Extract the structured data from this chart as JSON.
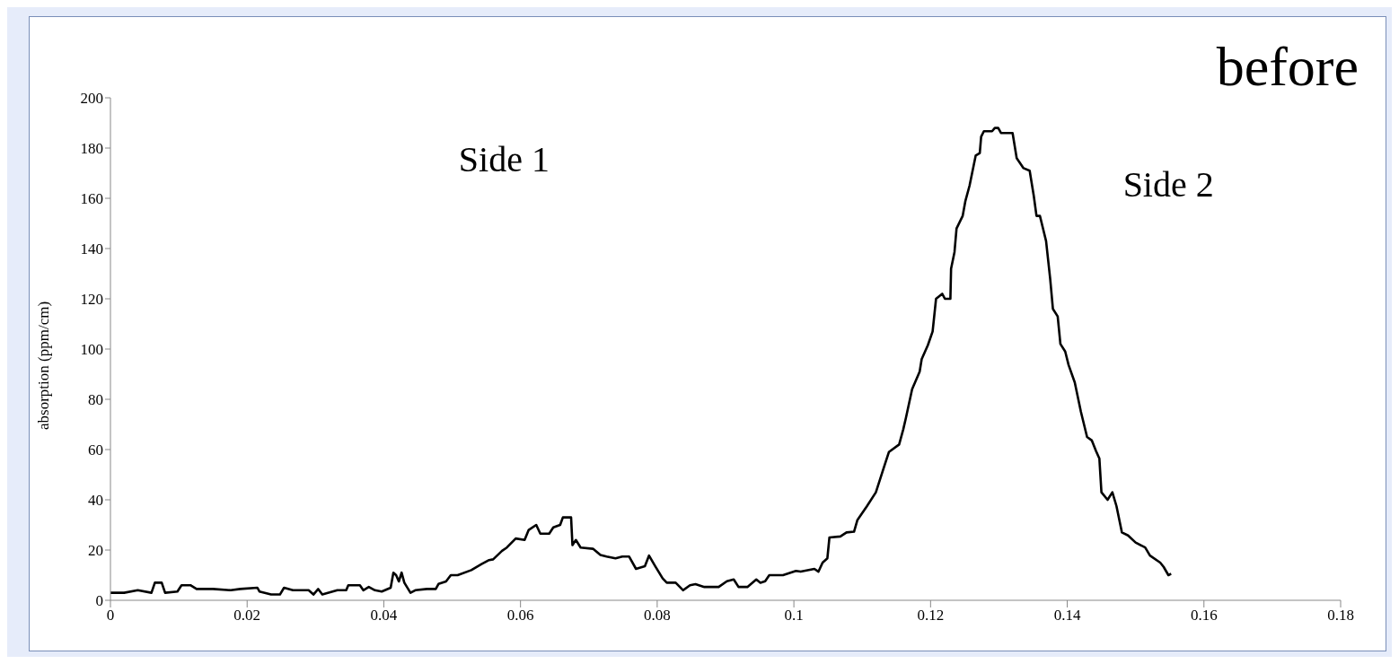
{
  "chart_data": {
    "type": "line",
    "title": "before",
    "ylabel": "absorption (ppm/cm)",
    "annotations": [
      "Side 1",
      "Side 2"
    ],
    "x": [
      0,
      0.002,
      0.004,
      0.006,
      0.0065,
      0.0075,
      0.008,
      0.0098,
      0.0104,
      0.0117,
      0.0126,
      0.015,
      0.0176,
      0.019,
      0.0215,
      0.0218,
      0.0235,
      0.0248,
      0.0254,
      0.0267,
      0.029,
      0.0297,
      0.0304,
      0.031,
      0.0332,
      0.0345,
      0.0348,
      0.0365,
      0.037,
      0.0378,
      0.0387,
      0.0397,
      0.041,
      0.0414,
      0.0418,
      0.0422,
      0.0426,
      0.043,
      0.0439,
      0.0446,
      0.0463,
      0.0476,
      0.048,
      0.0491,
      0.0498,
      0.0508,
      0.0528,
      0.0543,
      0.0554,
      0.056,
      0.0573,
      0.058,
      0.0593,
      0.0606,
      0.0612,
      0.0623,
      0.0629,
      0.0642,
      0.0648,
      0.0658,
      0.0662,
      0.0674,
      0.0676,
      0.0681,
      0.0688,
      0.0706,
      0.0717,
      0.0726,
      0.0739,
      0.0749,
      0.0759,
      0.0769,
      0.0782,
      0.0788,
      0.0797,
      0.0808,
      0.0814,
      0.0827,
      0.0838,
      0.0848,
      0.0856,
      0.0869,
      0.089,
      0.0902,
      0.0912,
      0.0919,
      0.0932,
      0.0945,
      0.0951,
      0.0958,
      0.0964,
      0.0984,
      0.1003,
      0.101,
      0.103,
      0.1036,
      0.1042,
      0.1049,
      0.1052,
      0.1068,
      0.1077,
      0.1088,
      0.1093,
      0.1107,
      0.112,
      0.113,
      0.1139,
      0.1154,
      0.116,
      0.1164,
      0.1173,
      0.1184,
      0.1187,
      0.1196,
      0.1203,
      0.1208,
      0.1217,
      0.1221,
      0.1229,
      0.123,
      0.1235,
      0.1238,
      0.1247,
      0.1251,
      0.1257,
      0.1266,
      0.1272,
      0.1274,
      0.1278,
      0.129,
      0.1294,
      0.1299,
      0.1303,
      0.132,
      0.1326,
      0.1336,
      0.1345,
      0.1351,
      0.1355,
      0.136,
      0.1369,
      0.1375,
      0.1379,
      0.1386,
      0.139,
      0.1397,
      0.1402,
      0.1411,
      0.142,
      0.1429,
      0.1436,
      0.1442,
      0.1447,
      0.145,
      0.1459,
      0.1466,
      0.1472,
      0.148,
      0.1489,
      0.15,
      0.1514,
      0.1521,
      0.1536,
      0.1541,
      0.1548,
      0.1552
    ],
    "series": [
      {
        "color": "#000000",
        "values": [
          3,
          3,
          4,
          3,
          7,
          7,
          3,
          3.5,
          6,
          6,
          4.5,
          4.5,
          4,
          4.5,
          5,
          3.5,
          2.3,
          2.3,
          5,
          4,
          4,
          2.3,
          4.5,
          2.3,
          4,
          4,
          6,
          6,
          4,
          5.3,
          4,
          3.5,
          5,
          11,
          10,
          7.5,
          11,
          7,
          3,
          4,
          4.5,
          4.5,
          6.5,
          7.5,
          10,
          10,
          12,
          14.4,
          16,
          16.3,
          19.7,
          21,
          24.6,
          24,
          28,
          30,
          26.5,
          26.5,
          29,
          30,
          33,
          33,
          22,
          24,
          21,
          20.5,
          18,
          17.4,
          16.7,
          17.4,
          17.4,
          12.5,
          13.6,
          17.8,
          13.6,
          8.7,
          7,
          7,
          4,
          6,
          6.4,
          5.3,
          5.3,
          7.6,
          8.3,
          5.3,
          5.3,
          8.3,
          7,
          7.6,
          10,
          10,
          11.7,
          11.4,
          12.5,
          11.4,
          15,
          16.7,
          25,
          25.4,
          27,
          27.3,
          32,
          37.5,
          43,
          51.5,
          59,
          62,
          68,
          72.7,
          84,
          91,
          96,
          101.5,
          107,
          120,
          122,
          120,
          120,
          132,
          138.6,
          148,
          153,
          159,
          165,
          177,
          178,
          184.5,
          186.7,
          186.7,
          188,
          188,
          186,
          186,
          176,
          172,
          171,
          161,
          153,
          153,
          143,
          128,
          116,
          113,
          102,
          99,
          93.6,
          86.7,
          75,
          65,
          63.6,
          59.5,
          56.4,
          43,
          40,
          43,
          37.5,
          27,
          25.8,
          23,
          21,
          17.8,
          15,
          13.3,
          10,
          10.6
        ]
      }
    ],
    "xlim": [
      0,
      0.18
    ],
    "xticks": [
      0,
      0.02,
      0.04,
      0.06,
      0.08,
      0.1,
      0.12,
      0.14,
      0.16,
      0.18
    ],
    "ylim": [
      0,
      200
    ],
    "yticks": [
      0,
      20,
      40,
      60,
      80,
      100,
      120,
      140,
      160,
      180,
      200
    ],
    "grid": false,
    "legend": false,
    "marker": "none",
    "line_style": "solid"
  }
}
